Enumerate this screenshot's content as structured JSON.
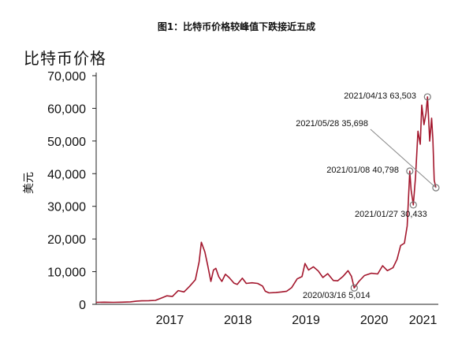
{
  "title": "图1：比特币价格较峰值下跌接近五成",
  "ylabel_top": "比特币价格",
  "ylabel_unit": "美元",
  "chart_data": {
    "type": "line",
    "title": "图1：比特币价格较峰值下跌接近五成",
    "ylabel": "美元",
    "xlabel": "",
    "ylim": [
      0,
      70000
    ],
    "xlim": [
      "2016-06-01",
      "2021-06-10"
    ],
    "yticks": [
      0,
      10000,
      20000,
      30000,
      40000,
      50000,
      60000,
      70000
    ],
    "ytick_labels": [
      "0",
      "10,000",
      "20,000",
      "30,000",
      "40,000",
      "50,000",
      "60,000",
      "70,000"
    ],
    "xtick_labels": [
      {
        "label": "2017",
        "date": "2017-07-01"
      },
      {
        "label": "2018",
        "date": "2018-07-01"
      },
      {
        "label": "2019",
        "date": "2019-07-01"
      },
      {
        "label": "2020",
        "date": "2020-07-01"
      },
      {
        "label": "2021",
        "date": "2021-03-20"
      }
    ],
    "grid": false,
    "line_color": "#a3162c",
    "series": [
      {
        "x": [
          "2016-06-01",
          "2016-07-15",
          "2016-09-01",
          "2016-10-15",
          "2016-12-01",
          "2017-01-05",
          "2017-02-01",
          "2017-03-10",
          "2017-04-15",
          "2017-05-20",
          "2017-06-15",
          "2017-07-15",
          "2017-08-15",
          "2017-09-15",
          "2017-10-15",
          "2017-11-15",
          "2017-12-05",
          "2017-12-17",
          "2018-01-05",
          "2018-01-20",
          "2018-02-06",
          "2018-02-20",
          "2018-03-05",
          "2018-03-20",
          "2018-04-06",
          "2018-04-25",
          "2018-05-15",
          "2018-06-10",
          "2018-06-28",
          "2018-07-25",
          "2018-08-15",
          "2018-09-15",
          "2018-10-15",
          "2018-11-10",
          "2018-11-25",
          "2018-12-15",
          "2019-01-20",
          "2019-02-20",
          "2019-03-20",
          "2019-04-15",
          "2019-05-15",
          "2019-06-10",
          "2019-06-26",
          "2019-07-15",
          "2019-08-10",
          "2019-09-05",
          "2019-09-30",
          "2019-10-26",
          "2019-11-25",
          "2019-12-18",
          "2020-01-15",
          "2020-02-12",
          "2020-03-01",
          "2020-03-16",
          "2020-04-10",
          "2020-05-10",
          "2020-06-15",
          "2020-07-20",
          "2020-08-15",
          "2020-09-10",
          "2020-10-10",
          "2020-11-01",
          "2020-11-20",
          "2020-12-10",
          "2020-12-25",
          "2021-01-08",
          "2021-01-15",
          "2021-01-27",
          "2021-02-08",
          "2021-02-21",
          "2021-03-05",
          "2021-03-13",
          "2021-03-25",
          "2021-04-05",
          "2021-04-13",
          "2021-04-25",
          "2021-05-05",
          "2021-05-12",
          "2021-05-19",
          "2021-05-28"
        ],
        "values": [
          600,
          650,
          610,
          650,
          750,
          1000,
          1050,
          1100,
          1200,
          2000,
          2600,
          2400,
          4200,
          3800,
          5500,
          7500,
          13000,
          19000,
          16000,
          12000,
          7000,
          10500,
          11000,
          8500,
          7000,
          9200,
          8200,
          6500,
          6100,
          8000,
          6400,
          6600,
          6400,
          5600,
          4000,
          3500,
          3600,
          3800,
          4000,
          5100,
          7800,
          8500,
          12500,
          10500,
          11500,
          10200,
          8200,
          9400,
          7300,
          7200,
          8500,
          10300,
          8600,
          5014,
          7000,
          8800,
          9500,
          9300,
          11800,
          10300,
          11200,
          13800,
          18000,
          18700,
          24000,
          40798,
          35000,
          30433,
          39000,
          53000,
          49000,
          61000,
          55000,
          58500,
          63503,
          50000,
          57000,
          50500,
          38000,
          35698
        ]
      }
    ],
    "annotations": [
      {
        "text": "2021/04/13 63,503",
        "date": "2021-04-13",
        "value": 63503
      },
      {
        "text": "2021/05/28 35,698",
        "date": "2021-05-28",
        "value": 35698
      },
      {
        "text": "2021/01/08 40,798",
        "date": "2021-01-08",
        "value": 40798
      },
      {
        "text": "2021/01/27 30,433",
        "date": "2021-01-27",
        "value": 30433
      },
      {
        "text": "2020/03/16 5,014",
        "date": "2020-03-16",
        "value": 5014
      }
    ]
  }
}
